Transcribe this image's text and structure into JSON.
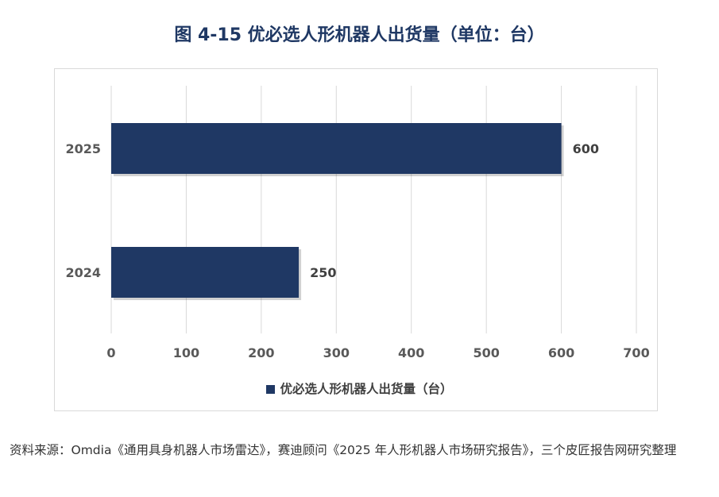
{
  "figure": {
    "title": "图 4-15  优必选人形机器人出货量（单位：台）",
    "source": "资料来源：Omdia《通用具身机器人市场雷达》，赛迪顾问《2025 年人形机器人市场研究报告》，三个皮匠报告网研究整理"
  },
  "chart_data": {
    "type": "bar",
    "orientation": "horizontal",
    "categories": [
      "2025",
      "2024"
    ],
    "series": [
      {
        "name": "优必选人形机器人出货量（台）",
        "values": [
          600,
          250
        ]
      }
    ],
    "xlim": [
      0,
      700
    ],
    "xticks": [
      0,
      100,
      200,
      300,
      400,
      500,
      600,
      700
    ],
    "grid": true,
    "legend": "bottom",
    "colors": {
      "bar": "#1f3864",
      "grid": "#d9d9d9"
    }
  }
}
